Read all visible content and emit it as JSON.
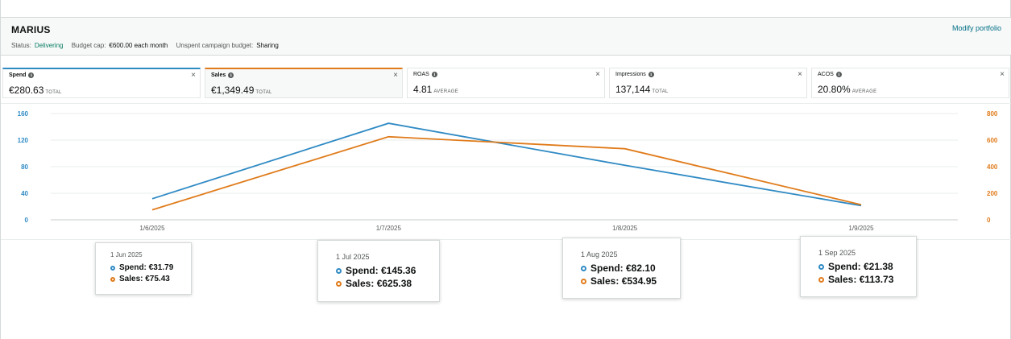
{
  "header": {
    "title": "MARIUS",
    "modify_link": "Modify portfolio",
    "status_label": "Status:",
    "status_value": "Delivering",
    "budget_label": "Budget cap:",
    "budget_value": "€600.00 each month",
    "unspent_label": "Unspent campaign budget:",
    "unspent_value": "Sharing"
  },
  "tiles": [
    {
      "label": "Spend",
      "value": "€280.63",
      "suffix": "TOTAL",
      "selected": true,
      "color": "#2f8ac4"
    },
    {
      "label": "Sales",
      "value": "€1,349.49",
      "suffix": "TOTAL",
      "selected": true,
      "color": "#e07b1a"
    },
    {
      "label": "ROAS",
      "value": "4.81",
      "suffix": "AVERAGE",
      "selected": false
    },
    {
      "label": "Impressions",
      "value": "137,144",
      "suffix": "TOTAL",
      "selected": false
    },
    {
      "label": "ACOS",
      "value": "20.80%",
      "suffix": "AVERAGE",
      "selected": false
    }
  ],
  "icons": {
    "info": "info-icon",
    "close": "close-icon"
  },
  "close_glyph": "×",
  "info_glyph": "i",
  "chart_data": {
    "type": "line",
    "x": [
      "1/6/2025",
      "1/7/2025",
      "1/8/2025",
      "1/9/2025"
    ],
    "series": [
      {
        "name": "Spend",
        "axis": "left",
        "color": "#2f8ac4",
        "values": [
          31.79,
          145.36,
          82.1,
          21.38
        ]
      },
      {
        "name": "Sales",
        "axis": "right",
        "color": "#e07b1a",
        "values": [
          75.43,
          625.38,
          534.95,
          113.73
        ]
      }
    ],
    "left_axis": {
      "ticks": [
        0,
        40,
        80,
        120,
        160
      ],
      "ylim": [
        0,
        160
      ],
      "color": "#2f8ac4"
    },
    "right_axis": {
      "ticks": [
        0,
        200,
        400,
        600,
        800
      ],
      "ylim": [
        0,
        800
      ],
      "color": "#e07b1a"
    },
    "grid": true
  },
  "tooltips": [
    {
      "date": "1 Jun 2025",
      "spend": "Spend: €31.79",
      "sales": "Sales: €75.43"
    },
    {
      "date": "1 Jul 2025",
      "spend": "Spend: €145.36",
      "sales": "Sales: €625.38"
    },
    {
      "date": "1 Aug 2025",
      "spend": "Spend: €82.10",
      "sales": "Sales: €534.95"
    },
    {
      "date": "1 Sep 2025",
      "spend": "Spend: €21.38",
      "sales": "Sales: €113.73"
    }
  ]
}
